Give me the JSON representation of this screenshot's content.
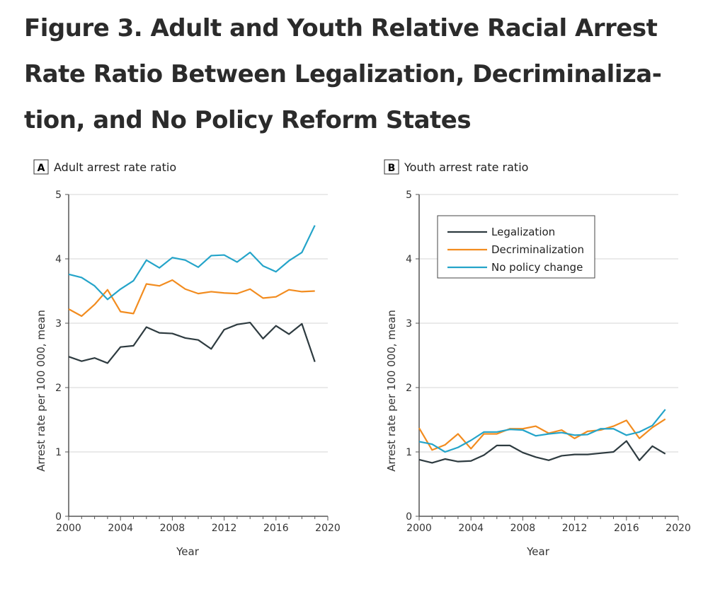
{
  "title": "Figure 3.  Adult and Youth Relative Racial Arrest Rate Ratio Between Legalization, Decriminaliza-tion, and No Policy Reform States",
  "colors": {
    "Legalization": "#2e3b40",
    "Decriminalization": "#f28c1f",
    "No policy change": "#24a4c9"
  },
  "chart_data": [
    {
      "type": "line",
      "panel": "A",
      "title": "Adult arrest rate ratio",
      "xlabel": "Year",
      "ylabel": "Arrest rate per 100 000, mean",
      "xlim": [
        2000,
        2020
      ],
      "ylim": [
        0,
        5
      ],
      "xticks": [
        2000,
        2004,
        2008,
        2012,
        2016,
        2020
      ],
      "yticks": [
        0,
        1,
        2,
        3,
        4,
        5
      ],
      "grid": true,
      "x": [
        2000,
        2001,
        2002,
        2003,
        2004,
        2005,
        2006,
        2007,
        2008,
        2009,
        2010,
        2011,
        2012,
        2013,
        2014,
        2015,
        2016,
        2017,
        2018,
        2019
      ],
      "series": [
        {
          "name": "Legalization",
          "values": [
            2.48,
            2.41,
            2.46,
            2.38,
            2.63,
            2.65,
            2.94,
            2.85,
            2.84,
            2.77,
            2.74,
            2.6,
            2.9,
            2.98,
            3.01,
            2.76,
            2.96,
            2.83,
            2.99,
            2.4
          ]
        },
        {
          "name": "Decriminalization",
          "values": [
            3.22,
            3.11,
            3.29,
            3.52,
            3.18,
            3.15,
            3.61,
            3.58,
            3.67,
            3.53,
            3.46,
            3.49,
            3.47,
            3.46,
            3.53,
            3.39,
            3.41,
            3.52,
            3.49,
            3.5
          ]
        },
        {
          "name": "No policy change",
          "values": [
            3.76,
            3.71,
            3.58,
            3.37,
            3.53,
            3.66,
            3.98,
            3.86,
            4.02,
            3.98,
            3.87,
            4.05,
            4.06,
            3.95,
            4.1,
            3.89,
            3.8,
            3.97,
            4.1,
            4.52
          ]
        }
      ]
    },
    {
      "type": "line",
      "panel": "B",
      "title": "Youth arrest rate ratio",
      "xlabel": "Year",
      "ylabel": "Arrest rate per 100 000, mean",
      "xlim": [
        2000,
        2020
      ],
      "ylim": [
        0,
        5
      ],
      "xticks": [
        2000,
        2004,
        2008,
        2012,
        2016,
        2020
      ],
      "yticks": [
        0,
        1,
        2,
        3,
        4,
        5
      ],
      "grid": true,
      "legend": "top-left",
      "x": [
        2000,
        2001,
        2002,
        2003,
        2004,
        2005,
        2006,
        2007,
        2008,
        2009,
        2010,
        2011,
        2012,
        2013,
        2014,
        2015,
        2016,
        2017,
        2018,
        2019
      ],
      "series": [
        {
          "name": "Legalization",
          "values": [
            0.88,
            0.83,
            0.89,
            0.85,
            0.86,
            0.95,
            1.1,
            1.1,
            0.99,
            0.92,
            0.87,
            0.94,
            0.96,
            0.96,
            0.98,
            1.0,
            1.17,
            0.87,
            1.09,
            0.97
          ]
        },
        {
          "name": "Decriminalization",
          "values": [
            1.37,
            1.03,
            1.11,
            1.28,
            1.05,
            1.28,
            1.28,
            1.36,
            1.36,
            1.4,
            1.29,
            1.34,
            1.21,
            1.32,
            1.34,
            1.4,
            1.49,
            1.21,
            1.38,
            1.51
          ]
        },
        {
          "name": "No policy change",
          "values": [
            1.16,
            1.12,
            1.0,
            1.07,
            1.18,
            1.31,
            1.31,
            1.35,
            1.34,
            1.25,
            1.28,
            1.3,
            1.26,
            1.27,
            1.36,
            1.36,
            1.26,
            1.31,
            1.41,
            1.66
          ]
        }
      ]
    }
  ]
}
